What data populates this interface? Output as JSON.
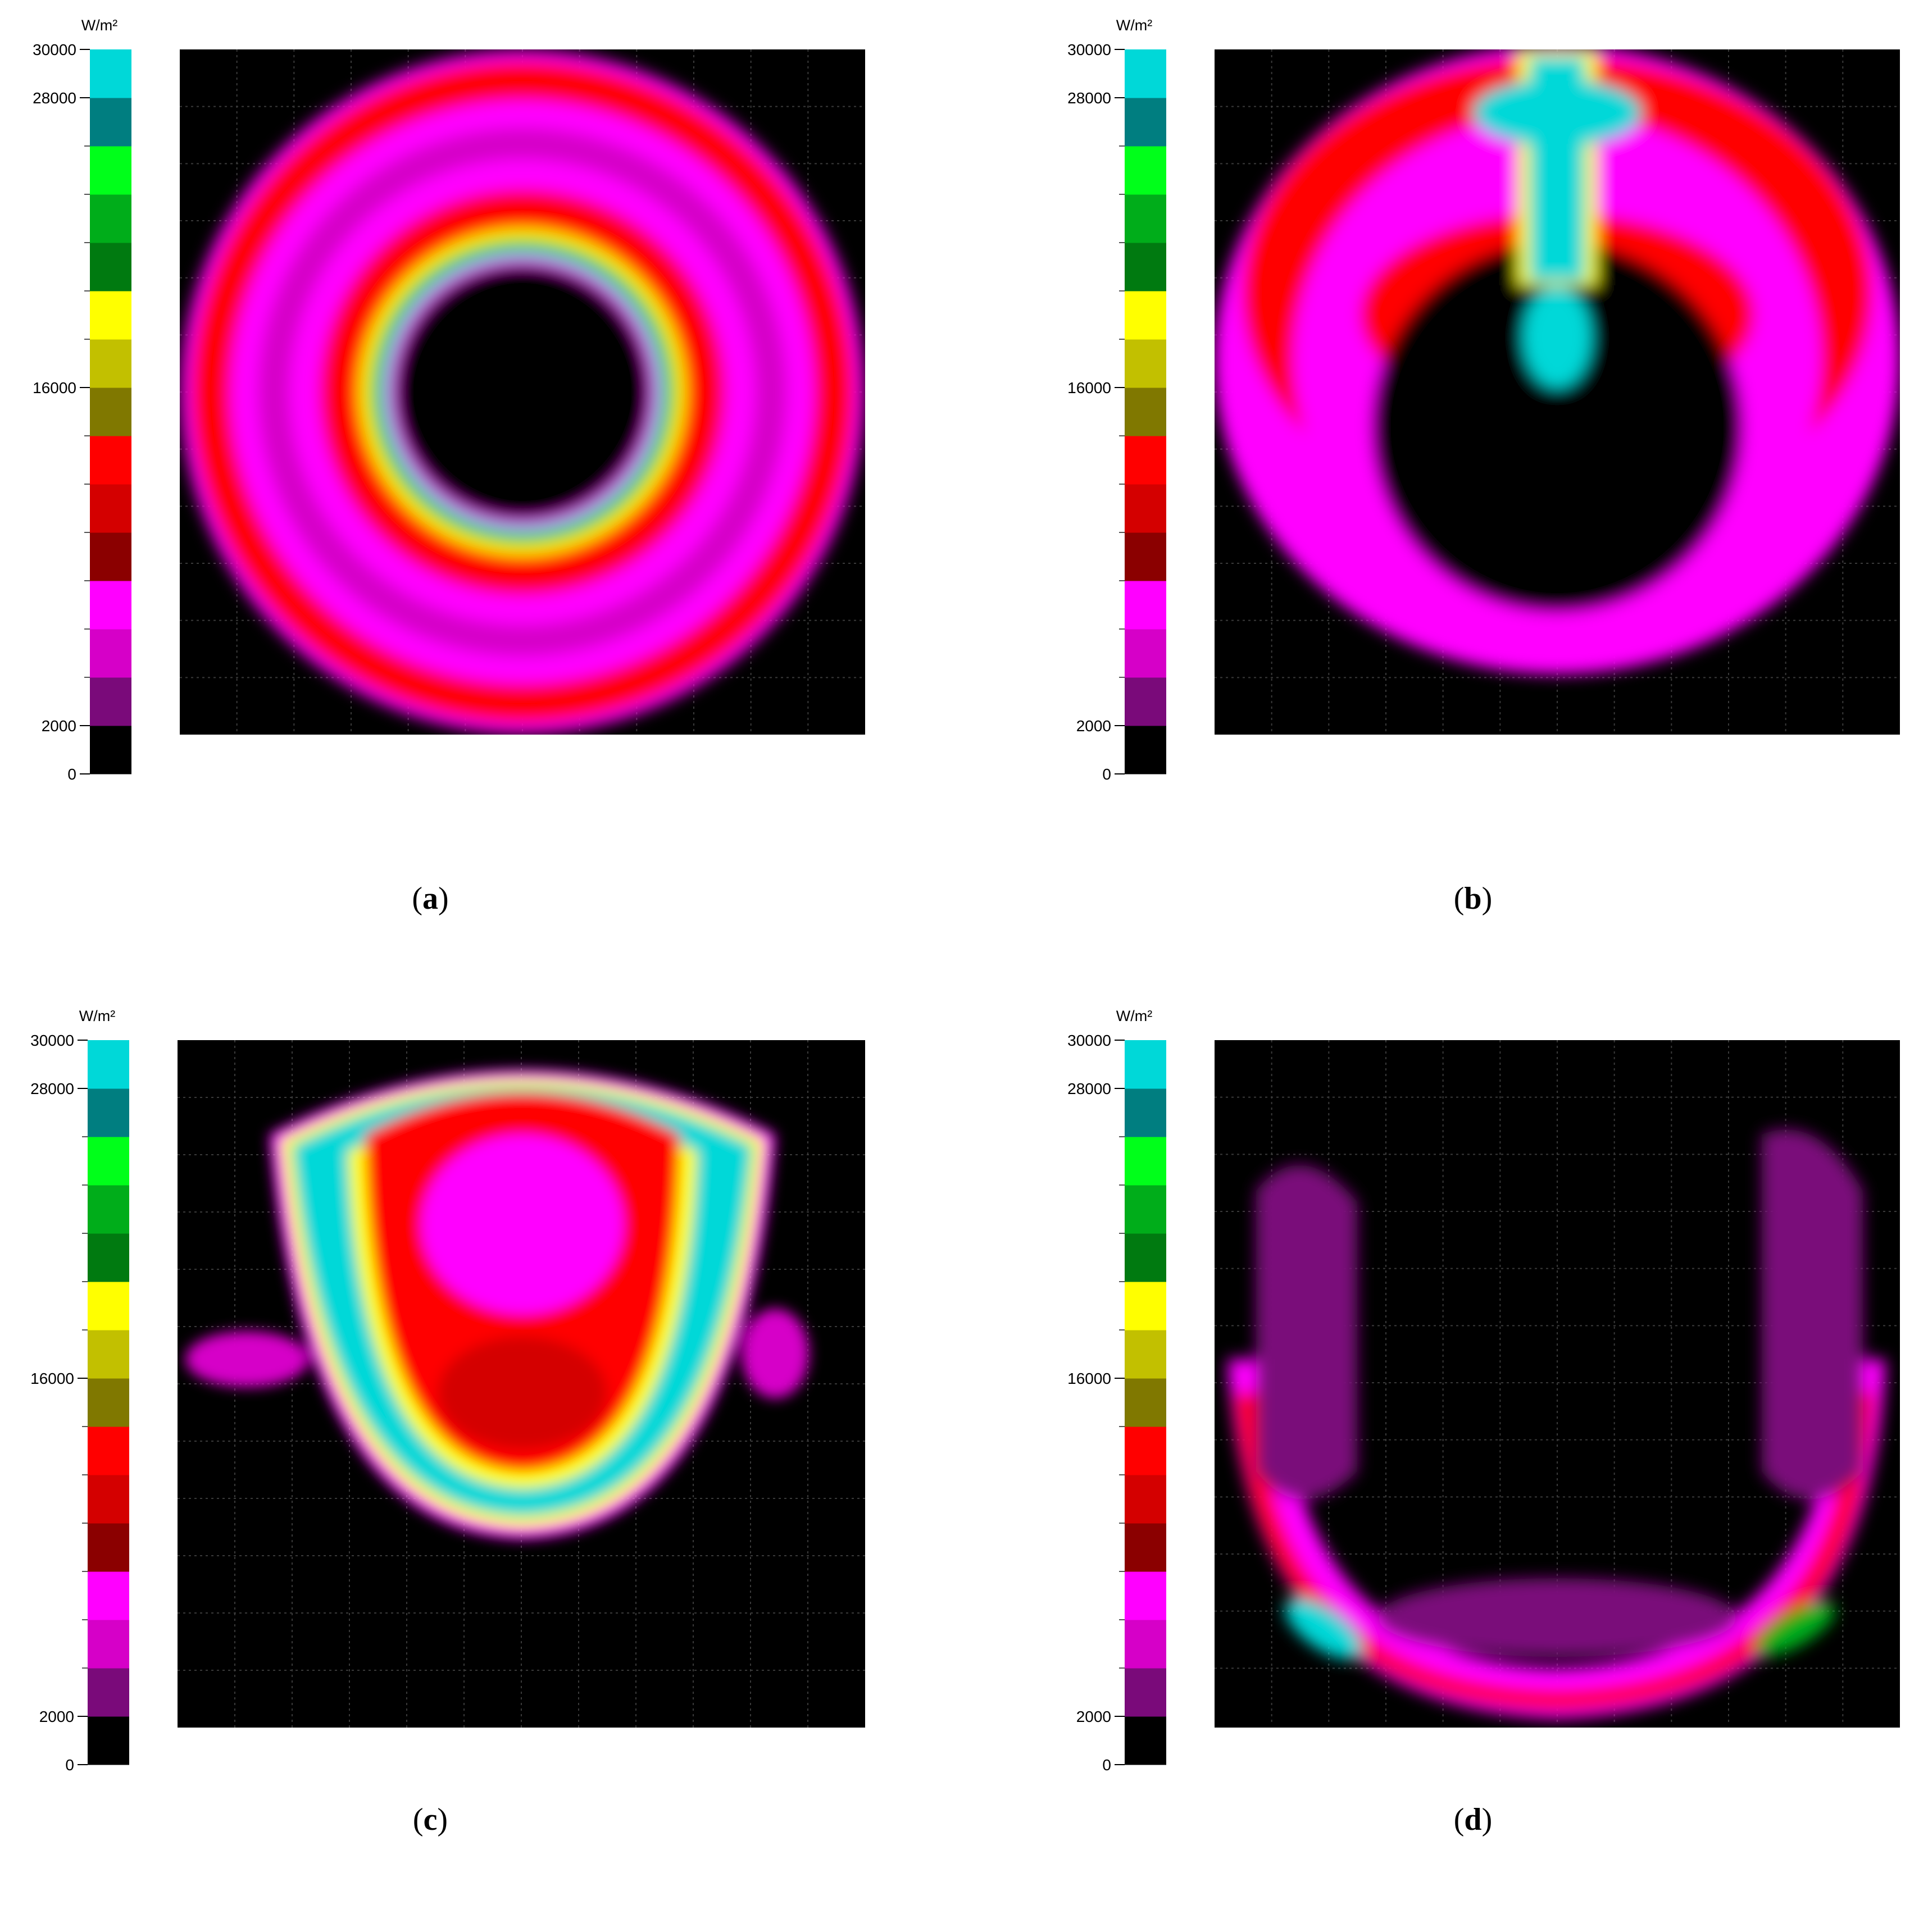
{
  "colorbar": {
    "unit": "W/m²",
    "tick_labels": [
      "30000",
      "28000",
      "16000",
      "2000",
      "0"
    ],
    "levels": [
      {
        "label": "0–2000",
        "color": "#000000"
      },
      {
        "color": "#7a0a7a"
      },
      {
        "color": "#d600c8"
      },
      {
        "color": "#ff00ff"
      },
      {
        "color": "#8b0000"
      },
      {
        "color": "#d40000"
      },
      {
        "color": "#ff0000"
      },
      {
        "color": "#807800"
      },
      {
        "color": "#c2c000"
      },
      {
        "color": "#ffff00"
      },
      {
        "color": "#007a10"
      },
      {
        "color": "#00ad1a"
      },
      {
        "color": "#00ff1a"
      },
      {
        "color": "#007e80"
      },
      {
        "label": "28000–30000",
        "color": "#00d8d8"
      }
    ]
  },
  "panels": [
    {
      "id": "a",
      "label": "a"
    },
    {
      "id": "b",
      "label": "b"
    },
    {
      "id": "c",
      "label": "c"
    },
    {
      "id": "d",
      "label": "d"
    }
  ],
  "chart_data": [
    {
      "type": "heatmap",
      "panel": "a",
      "colorbar_unit": "W/m²",
      "colorbar_ticks": [
        0,
        2000,
        16000,
        28000,
        30000
      ],
      "pattern": "full annulus with hot inner ring"
    },
    {
      "type": "heatmap",
      "panel": "b",
      "colorbar_unit": "W/m²",
      "colorbar_ticks": [
        0,
        2000,
        16000,
        28000,
        30000
      ],
      "pattern": "annulus with hot vertical jet at top"
    },
    {
      "type": "heatmap",
      "panel": "c",
      "colorbar_unit": "W/m²",
      "colorbar_ticks": [
        0,
        2000,
        16000,
        28000,
        30000
      ],
      "pattern": "filled cup-shaped region with hot edges"
    },
    {
      "type": "heatmap",
      "panel": "d",
      "colorbar_unit": "W/m²",
      "colorbar_ticks": [
        0,
        2000,
        16000,
        28000,
        30000
      ],
      "pattern": "open U-shaped arc, hot at lower sides"
    }
  ]
}
